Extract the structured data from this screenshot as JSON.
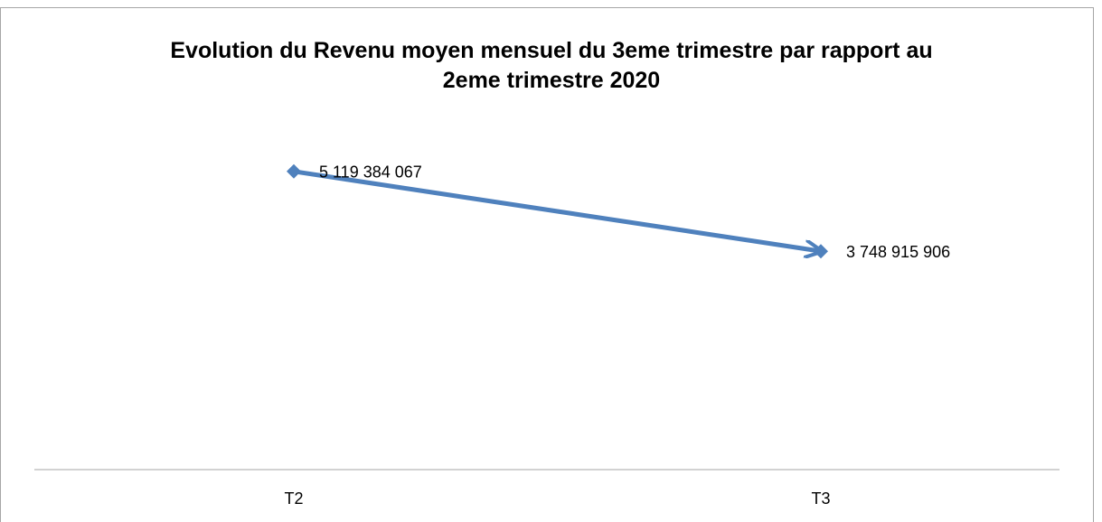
{
  "chart_data": {
    "type": "line",
    "title": "Evolution du Revenu moyen mensuel du 3eme trimestre par rapport au 2eme  trimestre 2020",
    "categories": [
      "T2",
      "T3"
    ],
    "series": [
      {
        "color": "#4f81bd",
        "values": [
          5119384067,
          3748915906
        ],
        "value_labels": [
          "5 119 384 067",
          "3 748 915 906"
        ]
      }
    ],
    "ylim": [
      0,
      6000000000
    ]
  }
}
